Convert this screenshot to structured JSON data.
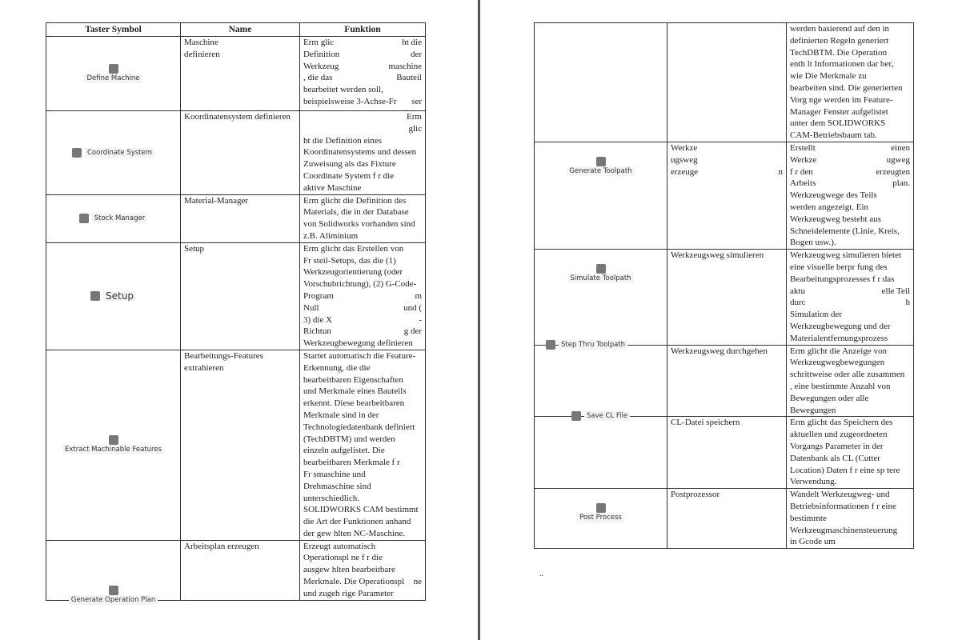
{
  "left_page": {
    "headers": [
      "Taster Symbol",
      "Name",
      "Funktion"
    ],
    "rows": [
      {
        "symbol": "Define Machine",
        "icon": "machine-icon",
        "layout": "stack",
        "pos": "center",
        "h": 93,
        "name": [
          "Maschine",
          "definieren"
        ],
        "func": [
          [
            "Erm   glic",
            "ht die"
          ],
          [
            "Definition",
            "der"
          ],
          [
            "Werkzeug",
            "maschine"
          ],
          [
            ", die das",
            "Bauteil"
          ],
          [
            "bearbeitet werden soll,"
          ],
          [
            "beispielsweise 3-Achse-Fr",
            "ser"
          ]
        ]
      },
      {
        "symbol": "Coordinate System",
        "icon": "coordinate-axes-icon",
        "layout": "row",
        "pos": "center",
        "h": 104,
        "name": [
          "Koordinatensystem definieren"
        ],
        "func": [
          [
            "",
            "Erm"
          ],
          [
            "",
            "glic"
          ],
          [
            "ht die Definition eines"
          ],
          [
            "Koordinatensystems und dessen"
          ],
          [
            "Zuweisung als das Fixture"
          ],
          [
            "Coordinate System f   r die"
          ],
          [
            "aktive Maschine"
          ]
        ]
      },
      {
        "symbol": "Stock Manager",
        "icon": "stock-cube-icon",
        "layout": "row",
        "pos": "center",
        "h": 60,
        "name": [
          "Material-Manager"
        ],
        "func": [
          [
            "Erm   glicht die Definition des"
          ],
          [
            "Materials, die in der Database"
          ],
          [
            "von Solidworks vorhanden sind"
          ],
          [
            "z.B. Aliminium"
          ]
        ]
      },
      {
        "symbol": "Setup",
        "icon": "setup-icon",
        "layout": "row",
        "pos": "center",
        "big": true,
        "h": 132,
        "name": [
          "Setup"
        ],
        "func": [
          [
            "Erm   glicht das Erstellen von"
          ],
          [
            "Fr   steil-Setups, das die (1)"
          ],
          [
            "Werkzeugorientierung (oder"
          ],
          [
            "Vorschubrichtung), (2) G-Code-"
          ],
          [
            "Program",
            "m"
          ],
          [
            "Null",
            "und ("
          ],
          [
            "3) die X",
            "-"
          ],
          [
            "Richtun",
            "g der"
          ],
          [
            "Werkzeugbewegung definieren"
          ]
        ]
      },
      {
        "symbol": "Extract Machinable Features",
        "icon": "extract-features-icon",
        "layout": "stack",
        "pos": "center",
        "h": 237,
        "name": [
          "Bearbeitungs-Features",
          "extrahieren"
        ],
        "func": [
          [
            "Startet automatisch die Feature-"
          ],
          [
            "Erkennung, die die"
          ],
          [
            "bearbeitbaren Eigenschaften"
          ],
          [
            "und Merkmale eines Bauteils"
          ],
          [
            "erkennt. Diese bearbeitbaren"
          ],
          [
            "Merkmale sind in der"
          ],
          [
            "Technologiedatenbank definiert"
          ],
          [
            "(TechDBTM) und werden"
          ],
          [
            "einzeln aufgelistet. Die"
          ],
          [
            "bearbeitbaren Merkmale f    r"
          ],
          [
            "Fr   smaschine und"
          ],
          [
            "Drehmaschine sind"
          ],
          [
            "unterschiedlich."
          ],
          [
            "SOLIDWORKS CAM bestimmt"
          ],
          [
            "die Art der Funktionen anhand"
          ],
          [
            "der gew    hlten NC-Maschine."
          ]
        ]
      },
      {
        "symbol": "Generate Operation Plan",
        "icon": "operation-plan-icon",
        "layout": "stack",
        "pos": "bottom",
        "h": 75,
        "name": [
          "Arbeitsplan erzeugen"
        ],
        "func": [
          [
            "Erzeugt automatisch"
          ],
          [
            "Operationspl    ne f    r die"
          ],
          [
            "ausgew    hlten bearbeitbare"
          ],
          [
            "Merkmale. Die Operationspl",
            "ne"
          ],
          [
            "und zugeh    rige Parameter"
          ]
        ]
      }
    ]
  },
  "right_page": {
    "rows": [
      {
        "symbol": "",
        "icon": "",
        "layout": "none",
        "pos": "center",
        "h": 149,
        "name": [],
        "func": [
          [
            "werden basierend auf den in"
          ],
          [
            "definierten Regeln generiert"
          ],
          [
            "TechDBTM. Die Operation"
          ],
          [
            "enth    lt Informationen dar    ber,"
          ],
          [
            "wie Die Merkmale zu"
          ],
          [
            "bearbeiten sind. Die generierten"
          ],
          [
            "Vorg    nge werden im Feature-"
          ],
          [
            "Manager Fenster aufgelistet"
          ],
          [
            "unter dem SOLIDWORKS"
          ],
          [
            "CAM-Betriebsbaum tab."
          ]
        ]
      },
      {
        "symbol": "Generate Toolpath",
        "icon": "toolpath-icon",
        "layout": "stack",
        "pos": "upper",
        "h": 134,
        "name": [
          "Werkze",
          "ugsweg",
          [
            "erzeuge",
            "n"
          ]
        ],
        "func": [
          [
            "Erstellt",
            "einen"
          ],
          [
            "Werkze",
            "ugweg"
          ],
          [
            "f    r den",
            "erzeugten"
          ],
          [
            "Arbeits",
            "plan."
          ],
          [
            "Werkzeugwege des Teils"
          ],
          [
            "werden angezeigt. Ein"
          ],
          [
            "Werkzeugweg besteht aus"
          ],
          [
            "Schneidelemente (Linie, Kreis,"
          ],
          [
            "Bogen usw.)."
          ]
        ]
      },
      {
        "symbol": "Simulate Toolpath",
        "icon": "simulate-icon",
        "layout": "stack",
        "pos": "upper",
        "h": 118,
        "name": [
          "Werkzeugsweg simulieren"
        ],
        "func": [
          [
            "Werkzeugweg simulieren bietet"
          ],
          [
            "eine visuelle    berpr    fung des"
          ],
          [
            "Bearbeitungsprozesses f    r das"
          ],
          [
            "aktu",
            "elle Teil"
          ],
          [
            "durc",
            "h"
          ],
          [
            "Simulation der"
          ],
          [
            "Werkzeugbewegung und der"
          ],
          [
            "Materialentfernungsprozess"
          ]
        ]
      },
      {
        "symbol": "Step Thru Toolpath",
        "icon": "step-thru-icon",
        "layout": "row",
        "pos": "top",
        "h": 89,
        "name": [
          "Werkzeugsweg durchgehen"
        ],
        "func": [
          [
            "Erm    glicht die Anzeige von"
          ],
          [
            "Werkzeugwegbewegungen"
          ],
          [
            "schrittweise oder alle zusammen"
          ],
          [
            ", eine bestimmte Anzahl von"
          ],
          [
            "Bewegungen oder alle"
          ],
          [
            "Bewegungen"
          ]
        ]
      },
      {
        "symbol": "Save CL File",
        "icon": "save-cl-file-icon",
        "layout": "row",
        "pos": "top",
        "h": 89,
        "name": [
          "CL-Datei speichern"
        ],
        "func": [
          [
            "Erm    glicht das Speichern des"
          ],
          [
            "aktuellen und zugeordneten"
          ],
          [
            "Vorgangs Parameter in der"
          ],
          [
            "Datenbank als CL (Cutter"
          ],
          [
            "Location) Daten f    r eine sp    tere"
          ],
          [
            "Verwendung."
          ]
        ]
      },
      {
        "symbol": "Post Process",
        "icon": "post-process-icon",
        "layout": "stack",
        "pos": "upper",
        "h": 75,
        "name": [
          "Postprozessor"
        ],
        "func": [
          [
            "Wandelt Werkzeugweg- und"
          ],
          [
            "Betriebsinformationen f    r eine"
          ],
          [
            "bestimmte"
          ],
          [
            "Werkzeugmaschinensteuerung"
          ],
          [
            "in Gcode um"
          ]
        ]
      }
    ],
    "footer_mark": ".."
  }
}
